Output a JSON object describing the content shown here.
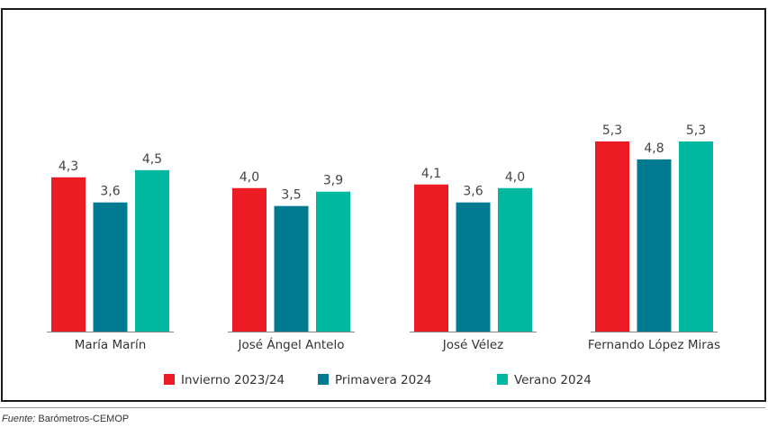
{
  "chart_data": {
    "type": "bar",
    "categories": [
      "María Marín",
      "José Ángel Antelo",
      "José Vélez",
      "Fernando López Miras"
    ],
    "series": [
      {
        "name": "Invierno 2023/24",
        "values": [
          4.3,
          4.0,
          4.1,
          5.3
        ],
        "labels": [
          "4,3",
          "4,0",
          "4,1",
          "5,3"
        ],
        "color": "#ed1c24"
      },
      {
        "name": "Primavera 2024",
        "values": [
          3.6,
          3.5,
          3.6,
          4.8
        ],
        "labels": [
          "3,6",
          "3,5",
          "3,6",
          "4,8"
        ],
        "color": "#007a91"
      },
      {
        "name": "Verano 2024",
        "values": [
          4.5,
          3.9,
          4.0,
          5.3
        ],
        "labels": [
          "4,5",
          "3,9",
          "4,0",
          "5,3"
        ],
        "color": "#00b8a0"
      }
    ],
    "ylim": [
      0,
      10
    ],
    "grid": false,
    "legend_position": "bottom"
  },
  "source": {
    "label": "Fuente:",
    "text": "Barómetros-CEMOP"
  }
}
